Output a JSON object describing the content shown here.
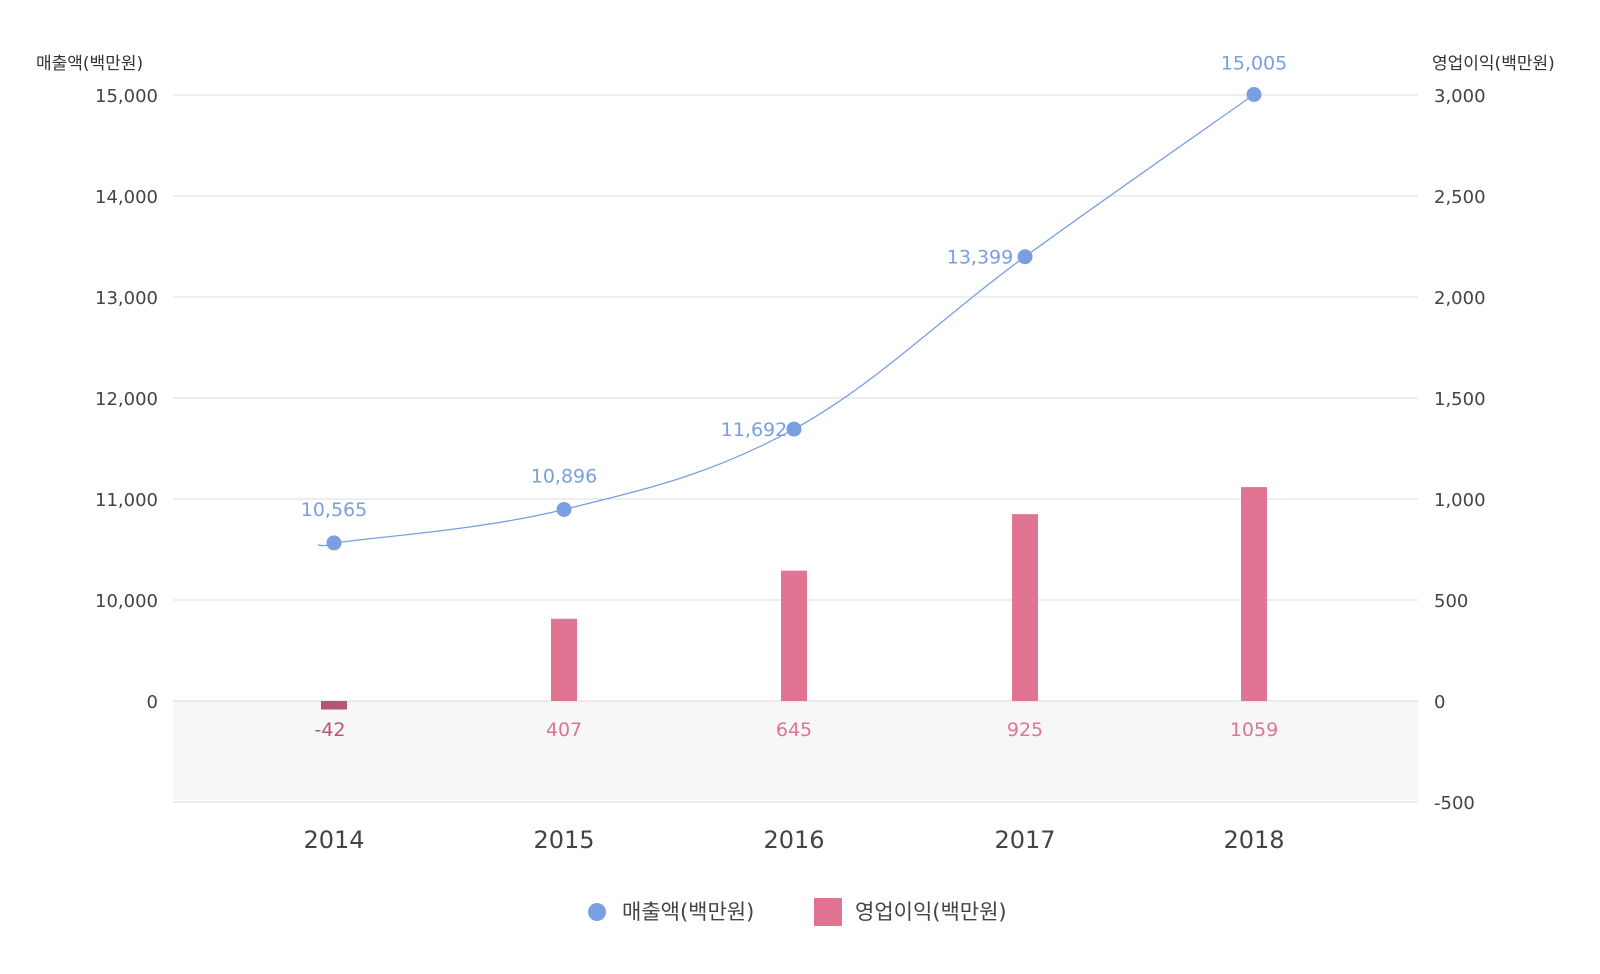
{
  "chart_data": {
    "type": "bar+line",
    "categories": [
      "2014",
      "2015",
      "2016",
      "2017",
      "2018"
    ],
    "left_axis": {
      "title": "매출액(백만원)",
      "ticks": [
        "15,000",
        "14,000",
        "13,000",
        "12,000",
        "11,000",
        "10,000",
        "0"
      ]
    },
    "right_axis": {
      "title": "영업이익(백만원)",
      "ticks": [
        "3,000",
        "2,500",
        "2,000",
        "1,500",
        "1,000",
        "500",
        "0",
        "-500"
      ],
      "ylim": [
        -500,
        3000
      ]
    },
    "series": [
      {
        "name": "매출액(백만원)",
        "kind": "line",
        "axis": "left",
        "color": "#7a9fe0",
        "values": [
          10565,
          10896,
          11692,
          13399,
          15005
        ],
        "labels": [
          "10,565",
          "10,896",
          "11,692",
          "13,399",
          "15,005"
        ]
      },
      {
        "name": "영업이익(백만원)",
        "kind": "bar",
        "axis": "right",
        "color": "#e07492",
        "negative_color": "#b85570",
        "values": [
          -42,
          407,
          645,
          925,
          1059
        ],
        "labels": [
          "-42",
          "407",
          "645",
          "925",
          "1059"
        ]
      }
    ],
    "grid": true,
    "legend": "bottom-center"
  }
}
